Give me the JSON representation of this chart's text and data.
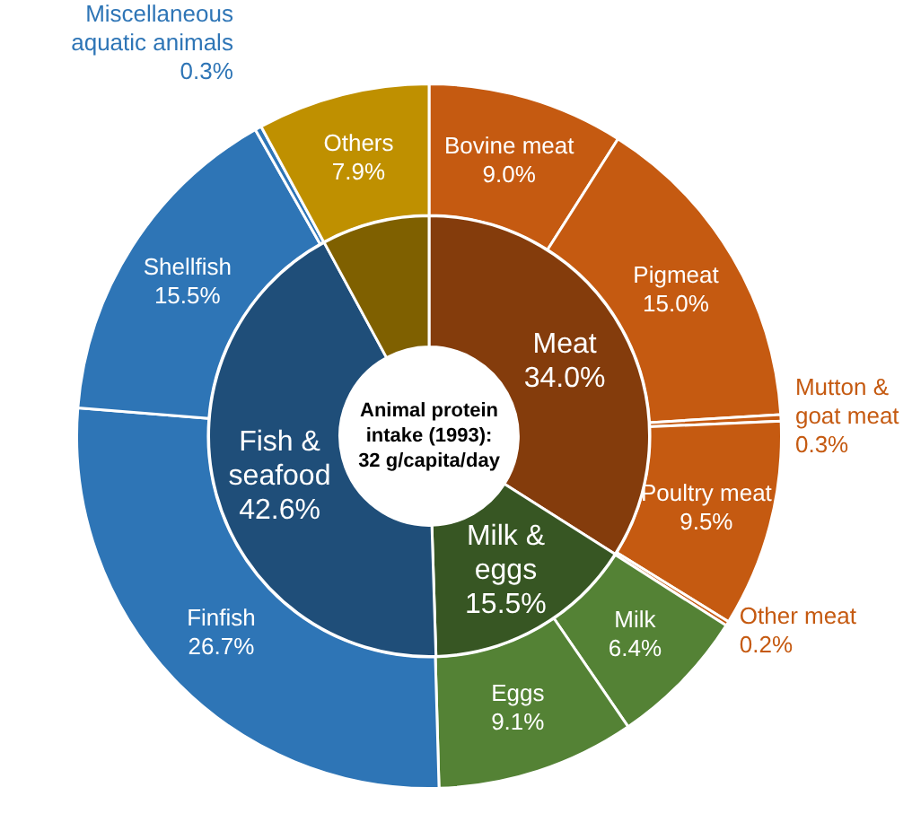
{
  "chart_data": [
    {
      "type": "donut",
      "categories": [
        "Bovine meat",
        "Pigmeat",
        "Mutton & goat meat",
        "Poultry meat",
        "Other meat",
        "Milk",
        "Eggs",
        "Finfish",
        "Shellfish",
        "Miscellaneous aquatic animals",
        "Others"
      ],
      "values": [
        9.0,
        15.0,
        0.3,
        9.5,
        0.2,
        6.4,
        9.1,
        26.7,
        15.5,
        0.3,
        7.9
      ],
      "colors": [
        "#c55a11",
        "#c55a11",
        "#c55a11",
        "#c55a11",
        "#c55a11",
        "#548235",
        "#548235",
        "#2e75b6",
        "#2e75b6",
        "#2e75b6",
        "#bf9000"
      ],
      "value_labels": [
        "9.0%",
        "15.0%",
        "0.3%",
        "9.5%",
        "0.2%",
        "6.4%",
        "9.1%",
        "26.7%",
        "15.5%",
        "0.3%",
        "7.9%"
      ]
    },
    {
      "type": "donut",
      "title": "Animal protein intake (1993): 32 g/capita/day",
      "categories": [
        "Meat",
        "Milk & eggs",
        "Fish & seafood",
        null
      ],
      "values": [
        34.0,
        15.5,
        42.6,
        7.9
      ],
      "colors": [
        "#843c0c",
        "#375623",
        "#1f4e79",
        "#7f6000"
      ],
      "value_labels": [
        "34.0%",
        "15.5%",
        "42.6%",
        null
      ]
    }
  ]
}
